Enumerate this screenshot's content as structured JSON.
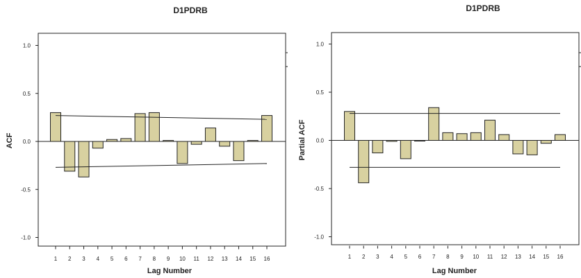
{
  "chart_data": [
    {
      "type": "bar",
      "title": "D1PDRB",
      "xlabel": "Lag Number",
      "ylabel": "ACF",
      "ylim": [
        -1.0,
        1.0
      ],
      "yticks": [
        "1.0",
        "0.5",
        "0.0",
        "-0.5",
        "-1.0"
      ],
      "categories": [
        "1",
        "2",
        "3",
        "4",
        "5",
        "6",
        "7",
        "8",
        "9",
        "10",
        "11",
        "12",
        "13",
        "14",
        "15",
        "16"
      ],
      "values": [
        0.3,
        -0.31,
        -0.37,
        -0.07,
        0.02,
        0.03,
        0.29,
        0.3,
        0.01,
        -0.23,
        -0.03,
        0.14,
        -0.05,
        -0.2,
        0.01,
        0.27
      ],
      "confidence_upper": [
        0.27,
        0.23
      ],
      "confidence_lower": [
        -0.27,
        -0.23
      ],
      "bar_color": "#d8d1a0",
      "grid": false
    },
    {
      "type": "bar",
      "title": "D1PDRB",
      "xlabel": "Lag Number",
      "ylabel": "Partial ACF",
      "ylim": [
        -1.0,
        1.0
      ],
      "yticks": [
        "1.0",
        "0.5",
        "0.0",
        "-0.5",
        "-1.0"
      ],
      "categories": [
        "1",
        "2",
        "3",
        "4",
        "5",
        "6",
        "7",
        "8",
        "9",
        "10",
        "11",
        "12",
        "13",
        "14",
        "15",
        "16"
      ],
      "values": [
        0.3,
        -0.44,
        -0.13,
        -0.01,
        -0.19,
        0.0,
        0.34,
        0.08,
        0.07,
        0.08,
        0.21,
        0.06,
        -0.14,
        -0.15,
        -0.03,
        0.06
      ],
      "confidence_upper": [
        0.28,
        0.28
      ],
      "confidence_lower": [
        -0.28,
        -0.28
      ],
      "bar_color": "#d8d1a0",
      "grid": false
    }
  ]
}
